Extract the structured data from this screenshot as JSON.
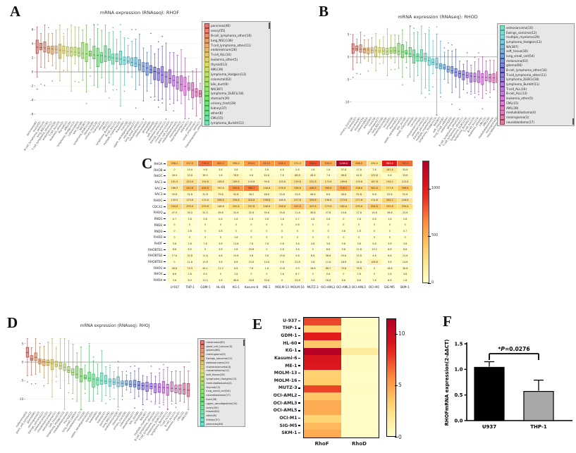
{
  "panels": {
    "a": {
      "letter": "A",
      "title": "mRNA expression (RNAseq): RHOF"
    },
    "b": {
      "letter": "B",
      "title": "mRNA expression (RNAseq): RHOD"
    },
    "c": {
      "letter": "C"
    },
    "d": {
      "letter": "D",
      "title": "mRNA expression (RNAseq): RHOJ"
    },
    "e": {
      "letter": "E"
    },
    "f": {
      "letter": "F"
    }
  },
  "colors": {
    "heat_low": "#ffffcc",
    "heat_mid": "#fd8d3c",
    "heat_high": "#b10026",
    "bar1": "#000000",
    "bar2": "#a8a8a8",
    "legend_bg": "#e7e7e7"
  },
  "chart_data": [
    {
      "id": "A",
      "type": "box",
      "title": "mRNA expression (RNAseq): RHOF",
      "ylim": [
        -6.8,
        6.8
      ],
      "yticks": [
        6,
        4,
        2,
        0,
        -2,
        -4,
        -6
      ],
      "grid": true,
      "legend_position": "right",
      "legend_scroll": "top",
      "legend_offset": 0,
      "legend_count": 21,
      "categories": [
        "pancreas(46)",
        "ovary(55)",
        "B-cell_lymphoma_other(16)",
        "lung_NSC(136)",
        "T-cell_lymphoma_other(11)",
        "endometrium(28)",
        "T-cell_ALL(16)",
        "leukemia_other(5)",
        "thyroid(12)",
        "AML(39)",
        "lymphoma_Hodgkin(13)",
        "colorectal(63)",
        "bile_duct(8)",
        "NA(387)",
        "lymphoma_DLBCL(18)",
        "stomach(39)",
        "urinary_tract(28)",
        "kidney(37)",
        "other(8)",
        "CML(15)",
        "lymphoma_Burkitt(11)",
        "B-cell_ALL(13)",
        "multiple_myeloma(29)",
        "breast(60)",
        "liver(28)",
        "upper_aerodigestive(33)",
        "oesophagus(27)",
        "lung_small_cell(54)",
        "mesothelioma(11)",
        "melanoma(63)",
        "glioma(66)",
        "prostate(8)",
        "soft_tissue(30)",
        "osteosarcoma(10)",
        "Ewings_sarcoma(12)",
        "chondrosarcoma(4)",
        "giant_cell_tumour(3)",
        "medulloblastoma(4)",
        "meningioma(3)",
        "neuroblastoma(17)",
        "adrenal(1)",
        "cervix(4)",
        "small_intestine(1)",
        "testis(1)",
        "haematopoietic_other(2)"
      ],
      "medians": [
        3.5,
        3.45,
        3.4,
        3.3,
        3.25,
        3.2,
        3.1,
        3.0,
        2.9,
        2.85,
        2.8,
        2.7,
        2.6,
        2.55,
        2.5,
        2.4,
        2.35,
        2.3,
        2.2,
        2.1,
        2.0,
        1.9,
        1.8,
        1.65,
        1.5,
        1.35,
        1.2,
        1.0,
        0.8,
        0.55,
        0.3,
        0.05,
        -0.2,
        -0.45,
        -0.7,
        -0.95,
        -1.2,
        -1.5,
        -1.8,
        -2.05,
        -2.3,
        -2.6,
        -2.85,
        -3.1,
        -3.4
      ]
    },
    {
      "id": "B",
      "type": "box",
      "title": "mRNA expression (RNAseq): RHOD",
      "ylim": [
        -13,
        7
      ],
      "yticks": [
        5,
        0,
        -5,
        -10
      ],
      "grid": true,
      "legend_position": "right",
      "legend_scroll": "bottom",
      "legend_offset": 19,
      "legend_count": 21,
      "categories": [
        "urinary_tract(28)",
        "kidney(37)",
        "pancreas(46)",
        "stomach(39)",
        "colorectal(63)",
        "breast(60)",
        "liver(28)",
        "oesophagus(27)",
        "lung_NSC(136)",
        "endometrium(28)",
        "ovary(55)",
        "prostate(8)",
        "thyroid(12)",
        "upper_aerodigestive(33)",
        "bile_duct(8)",
        "small_intestine(1)",
        "other(8)",
        "cervix(4)",
        "chondrosarcoma(4)",
        "osteosarcoma(10)",
        "Ewings_sarcoma(12)",
        "multiple_myeloma(29)",
        "lymphoma_Hodgkin(13)",
        "NA(387)",
        "soft_tissue(30)",
        "lung_small_cell(54)",
        "melanoma(63)",
        "glioma(66)",
        "B-cell_lymphoma_other(16)",
        "T-cell_lymphoma_other(11)",
        "lymphoma_DLBCL(18)",
        "lymphoma_Burkitt(11)",
        "T-cell_ALL(16)",
        "B-cell_ALL(13)",
        "leukemia_other(5)",
        "CML(15)",
        "AML(39)",
        "medulloblastoma(4)",
        "meningioma(3)",
        "neuroblastoma(17)"
      ],
      "medians": [
        1.8,
        1.75,
        1.7,
        1.6,
        1.55,
        1.5,
        1.4,
        1.35,
        1.3,
        1.2,
        1.3,
        1.35,
        1.25,
        1.1,
        0.9,
        0.7,
        0.45,
        0.2,
        -0.1,
        -0.45,
        -0.8,
        -1.2,
        -1.6,
        -2.0,
        -2.4,
        -2.8,
        -3.1,
        -3.4,
        -3.7,
        -3.9,
        -4.1,
        -4.25,
        -4.35,
        -4.45,
        -4.5,
        -4.55,
        -4.6,
        -4.65,
        -4.7,
        -4.75
      ]
    },
    {
      "id": "C",
      "type": "heatmap",
      "rows": [
        "RHOA",
        "RHOB",
        "RHOC",
        "RAC1",
        "RAC2",
        "RAC3",
        "RHOG",
        "CDC42",
        "RHOQ",
        "RND1",
        "RND2",
        "RND3",
        "RHOD",
        "RHOF",
        "RHOBTB1",
        "RHOBTB2",
        "RHOBTB3",
        "RHOU",
        "RHOV",
        "RHOH"
      ],
      "columns": [
        "U-937",
        "THP-1",
        "GDM-1",
        "HL-60",
        "KG-1",
        "Kasumi-6",
        "ME-1",
        "MOLM-13",
        "MOLM-16",
        "MUTZ-3",
        "OCI-AML2",
        "OCI-AML3",
        "OCI-AML5",
        "OCI-M1",
        "SIG-M5",
        "SKM-1"
      ],
      "vmin": 0,
      "vmax": 1300,
      "colorbar_ticks": [
        0,
        500,
        1000
      ],
      "show_values": true,
      "values": [
        [
          398.0,
          457.0,
          734.0,
          605.0,
          390.0,
          594.0,
          613.0,
          634.0,
          371.0,
          826.0,
          530.0,
          1249.0,
          466.0,
          254.0,
          983.0,
          747.0
        ],
        [
          0,
          10.0,
          9.8,
          3.8,
          3.8,
          0,
          5.8,
          4.8,
          5.8,
          1.8,
          1.8,
          37.8,
          17.8,
          7.8,
          187.8,
          33.8
        ],
        [
          26.9,
          33.8,
          38.0,
          1.8,
          76.8,
          9.8,
          44.8,
          7.8,
          88.8,
          48.8,
          7.8,
          98.8,
          44.8,
          103.8,
          9.8,
          33.8
        ],
        [
          181.9,
          243.8,
          194.8,
          138.8,
          189.8,
          119.8,
          99.8,
          129.8,
          219.8,
          232.8,
          173.8,
          189.8,
          139.8,
          187.8,
          194.2,
          123.8
        ],
        [
          188.9,
          442.8,
          448.8,
          192.8,
          592.8,
          688.2,
          248.8,
          278.8,
          338.8,
          448.8,
          398.8,
          528.2,
          338.8,
          382.8,
          277.8,
          398.8
        ],
        [
          33.8,
          31.8,
          31.8,
          79.8,
          92.8,
          28.2,
          48.8,
          23.8,
          23.8,
          48.8,
          8.8,
          48.8,
          92.8,
          8.8,
          52.8,
          52.8
        ],
        [
          139.0,
          173.8,
          174.8,
          298.8,
          294.8,
          320.8,
          298.8,
          148.8,
          257.8,
          339.8,
          196.8,
          273.8,
          277.8,
          174.8,
          344.2,
          218.8
        ],
        [
          334.8,
          293.8,
          293.8,
          148.8,
          292.8,
          297.8,
          248.8,
          298.8,
          432.8,
          347.8,
          273.8,
          282.8,
          293.8,
          394.8,
          333.8,
          294.8
        ],
        [
          47.9,
          35.0,
          32.5,
          39.8,
          32.6,
          32.6,
          35.8,
          33.8,
          11.8,
          36.8,
          27.8,
          15.8,
          27.8,
          19.8,
          36.8,
          23.8
        ],
        [
          0.7,
          0.8,
          0.8,
          0.8,
          2.8,
          1.8,
          0.8,
          1.8,
          0.7,
          4.8,
          0.8,
          0,
          1.8,
          0.8,
          1.8,
          2.8
        ],
        [
          0,
          0,
          0,
          0,
          0,
          0,
          0,
          0,
          0.8,
          0,
          0,
          0,
          0,
          0,
          0,
          0
        ],
        [
          0,
          2.8,
          0,
          0.8,
          0,
          0,
          0,
          0,
          0,
          0,
          0,
          0.8,
          1.8,
          0,
          0,
          0.7
        ],
        [
          0,
          0,
          0,
          0,
          1.8,
          0,
          0,
          0,
          0,
          0,
          0,
          0,
          0,
          0,
          0,
          0
        ],
        [
          3.8,
          2.8,
          7.8,
          3.8,
          11.8,
          7.8,
          7.8,
          0.8,
          3.8,
          4.8,
          3.8,
          0.8,
          3.8,
          0.8,
          3.8,
          3.8
        ],
        [
          8.8,
          8.0,
          0,
          3.8,
          2.8,
          29.8,
          0,
          2.8,
          3.8,
          0,
          8.8,
          5.8,
          11.8,
          19.2,
          8.8,
          8.8
        ],
        [
          17.8,
          32.8,
          11.8,
          4.8,
          15.8,
          5.8,
          3.8,
          19.8,
          4.8,
          8.8,
          38.8,
          29.8,
          15.8,
          4.8,
          8.8,
          13.8
        ],
        [
          0,
          11.8,
          19.8,
          3.8,
          8.8,
          15.8,
          14.8,
          5.8,
          21.8,
          3.8,
          11.8,
          18.8,
          14.8,
          108.8,
          3.8,
          14.8
        ],
        [
          48.8,
          74.9,
          44.1,
          21.0,
          8.8,
          7.8,
          1.8,
          10.8,
          9.9,
          18.8,
          88.2,
          79.8,
          76.8,
          0,
          18.8,
          36.8
        ],
        [
          8.8,
          2.8,
          8.0,
          0,
          1.8,
          0,
          0,
          1.8,
          8.7,
          0,
          0.8,
          0,
          1.8,
          0,
          2.8,
          4.8
        ],
        [
          3.8,
          8.9,
          13.0,
          3.8,
          46.8,
          18.8,
          33.8,
          0,
          53.8,
          3.8,
          18.8,
          8.8,
          8.8,
          7.8,
          8.8,
          1.8
        ]
      ]
    },
    {
      "id": "D",
      "type": "box",
      "title": "mRNA expression (RNAseq): RHOJ",
      "ylim": [
        -13,
        6.5
      ],
      "yticks": [
        5,
        0,
        -5,
        -10
      ],
      "grid": true,
      "legend_position": "right",
      "legend_scroll": "top",
      "legend_offset": 0,
      "legend_count": 21,
      "categories": [
        "melanoma(63)",
        "giant_cell_tumour(3)",
        "glioma(66)",
        "meningioma(3)",
        "Ewings_sarcoma(12)",
        "osteosarcoma(10)",
        "chondrosarcoma(4)",
        "mesothelioma(11)",
        "soft_tissue(28)",
        "lymphoma_Hodgkin(13)",
        "medulloblastoma(4)",
        "thyroid(12)",
        "lung_small_cell(54)",
        "neuroblastoma(17)",
        "liver(28)",
        "upper_aerodigestive(33)",
        "ovary(55)",
        "breast(60)",
        "other(8)",
        "kidney(37)",
        "pancreas(46)",
        "lung_NSC(136)",
        "endometrium(28)",
        "stomach(39)",
        "urinary_tract(28)",
        "colorectal(63)",
        "oesophagus(27)",
        "bile_duct(8)",
        "prostate(8)",
        "NA(387)",
        "multiple_myeloma(29)",
        "B-cell_lymphoma_other(16)",
        "T-cell_lymphoma_other(11)",
        "lymphoma_DLBCL(18)",
        "lymphoma_Burkitt(11)",
        "T-cell_ALL(16)",
        "B-cell_ALL(13)",
        "leukemia_other(5)",
        "CML(15)",
        "AML(39)"
      ],
      "medians": [
        2.6,
        0.9,
        1.3,
        0.4,
        0.1,
        -0.1,
        -0.4,
        -0.7,
        -1.0,
        -1.4,
        -2.2,
        -2.8,
        -3.3,
        -3.8,
        -4.2,
        -4.4,
        -4.6,
        -4.8,
        -5.0,
        -5.2,
        -5.3,
        -5.45,
        -5.6,
        -5.75,
        -5.9,
        -6.0,
        -6.1,
        -6.25,
        -6.4,
        -6.5,
        -6.6,
        -6.7,
        -6.8,
        -6.9,
        -7.0,
        -7.1,
        -7.2,
        -7.3,
        -7.45,
        -7.6
      ]
    },
    {
      "id": "E",
      "type": "heatmap",
      "rows": [
        "U-937",
        "THP-1",
        "GDM-1",
        "HL-60",
        "KG-1",
        "Kasumi-6",
        "ME-1",
        "MOLM-13",
        "MOLM-16",
        "MUTZ-3",
        "OCI-AML2",
        "OCI-AML3",
        "OCI-AML5",
        "OCI-M1",
        "SIG-M5",
        "SKM-1"
      ],
      "columns": [
        "RhoF",
        "RhoD"
      ],
      "vmin": 0,
      "vmax": 11.5,
      "colorbar_ticks": [
        0,
        5,
        10
      ],
      "show_values": false,
      "values": [
        [
          7.5,
          0.3
        ],
        [
          3.2,
          0.2
        ],
        [
          8.6,
          0.3
        ],
        [
          3.6,
          0.2
        ],
        [
          11.2,
          1.6
        ],
        [
          9.2,
          0.3
        ],
        [
          9.0,
          0.3
        ],
        [
          3.2,
          0.2
        ],
        [
          3.3,
          0.2
        ],
        [
          7.6,
          0.3
        ],
        [
          3.6,
          0.2
        ],
        [
          4.6,
          0.2
        ],
        [
          4.6,
          0.2
        ],
        [
          3.0,
          0.2
        ],
        [
          4.1,
          0.2
        ],
        [
          4.6,
          0.2
        ]
      ]
    },
    {
      "id": "F",
      "type": "bar",
      "ylabel": "RHOFmRNA expression(2-ΔΔCT)",
      "categories": [
        "U937",
        "THP-1"
      ],
      "values": [
        1.04,
        0.57
      ],
      "errors": [
        0.11,
        0.22
      ],
      "bar_colors": [
        "#000000",
        "#a8a8a8"
      ],
      "ylim": [
        0,
        1.5
      ],
      "yticks": [
        0.0,
        0.5,
        1.0,
        1.5
      ],
      "annotation": "*P=0.0276"
    }
  ]
}
